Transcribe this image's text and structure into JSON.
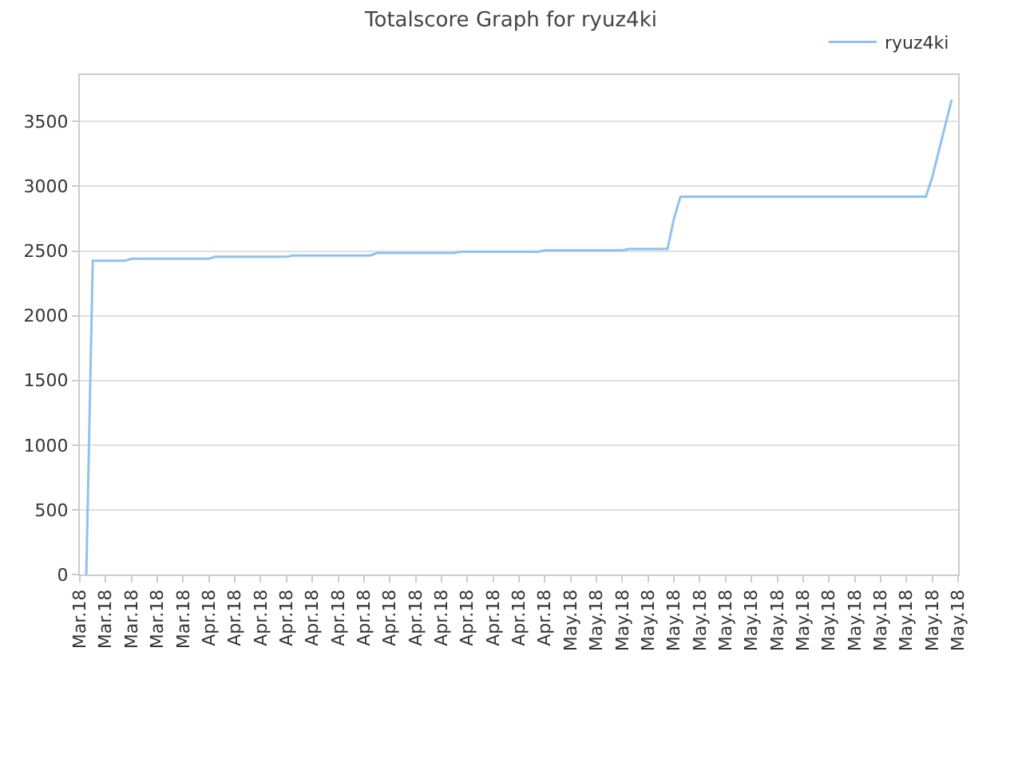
{
  "chart_data": {
    "type": "line",
    "title": "Totalscore Graph for ryuz4ki",
    "categories": [
      "Mar.18",
      null,
      null,
      null,
      "Mar.18",
      null,
      null,
      null,
      "Mar.18",
      null,
      null,
      null,
      "Mar.18",
      null,
      null,
      null,
      "Mar.18",
      null,
      null,
      null,
      "Apr.18",
      null,
      null,
      null,
      "Apr.18",
      null,
      null,
      null,
      "Apr.18",
      null,
      null,
      null,
      "Apr.18",
      null,
      null,
      null,
      "Apr.18",
      null,
      null,
      null,
      "Apr.18",
      null,
      null,
      null,
      "Apr.18",
      null,
      null,
      null,
      "Apr.18",
      null,
      null,
      null,
      "Apr.18",
      null,
      null,
      null,
      "Apr.18",
      null,
      null,
      null,
      "Apr.18",
      null,
      null,
      null,
      "Apr.18",
      null,
      null,
      null,
      "Apr.18",
      null,
      null,
      null,
      "Apr.18",
      null,
      null,
      null,
      "May.18",
      null,
      null,
      null,
      "May.18",
      null,
      null,
      null,
      "May.18",
      null,
      null,
      null,
      "May.18",
      null,
      null,
      null,
      "May.18",
      null,
      null,
      null,
      "May.18",
      null,
      null,
      null,
      "May.18",
      null,
      null,
      null,
      "May.18",
      null,
      null,
      null,
      "May.18",
      null,
      null,
      null,
      "May.18",
      null,
      null,
      null,
      "May.18",
      null,
      null,
      null,
      "May.18",
      null,
      null,
      null,
      "May.18",
      null,
      null,
      null,
      "May.18",
      null,
      null,
      null,
      "May.18",
      null,
      null,
      null,
      "May.18"
    ],
    "series": [
      {
        "name": "ryuz4ki",
        "color": "#90c2f0",
        "values": [
          null,
          0,
          2425,
          2425,
          2425,
          2425,
          2425,
          2425,
          2440,
          2440,
          2440,
          2440,
          2440,
          2440,
          2440,
          2440,
          2440,
          2440,
          2440,
          2440,
          2440,
          2455,
          2455,
          2455,
          2455,
          2455,
          2455,
          2455,
          2455,
          2455,
          2455,
          2455,
          2455,
          2465,
          2465,
          2465,
          2465,
          2465,
          2465,
          2465,
          2465,
          2465,
          2465,
          2465,
          2465,
          2465,
          2485,
          2485,
          2485,
          2485,
          2485,
          2485,
          2485,
          2485,
          2485,
          2485,
          2485,
          2485,
          2485,
          2495,
          2495,
          2495,
          2495,
          2495,
          2495,
          2495,
          2495,
          2495,
          2495,
          2495,
          2495,
          2495,
          2505,
          2505,
          2505,
          2505,
          2505,
          2505,
          2505,
          2505,
          2505,
          2505,
          2505,
          2505,
          2505,
          2515,
          2515,
          2515,
          2515,
          2515,
          2515,
          2515,
          2750,
          2920,
          2920,
          2920,
          2920,
          2920,
          2920,
          2920,
          2920,
          2920,
          2920,
          2920,
          2920,
          2920,
          2920,
          2920,
          2920,
          2920,
          2920,
          2920,
          2920,
          2920,
          2920,
          2920,
          2920,
          2920,
          2920,
          2920,
          2920,
          2920,
          2920,
          2920,
          2920,
          2920,
          2920,
          2920,
          2920,
          2920,
          2920,
          2920,
          3070,
          3270,
          3470,
          3670,
          null
        ]
      }
    ],
    "ylim": [
      0,
      3860
    ],
    "yticks": [
      0,
      500,
      1000,
      1500,
      2000,
      2500,
      3000,
      3500
    ],
    "grid": "y",
    "legend": "top right",
    "marker": "none",
    "line_style": "solid"
  }
}
